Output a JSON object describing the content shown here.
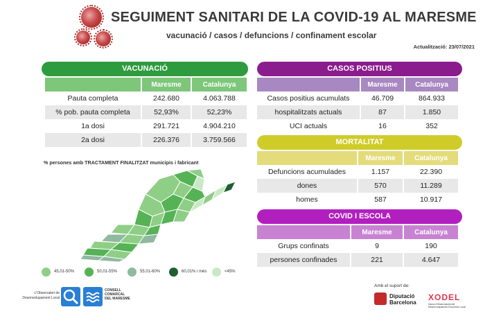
{
  "header": {
    "title": "SEGUIMENT SANITARI DE LA COVID-19 AL MARESME",
    "subtitle": "vacunació / casos / defuncions / confinament escolar",
    "updated": "Actualització: 23/07/2021"
  },
  "vaccination": {
    "title": "VACUNACIÓ",
    "col_region": "Maresme",
    "col_cat": "Catalunya",
    "rows": [
      {
        "label": "Pauta completa",
        "maresme": "242.680",
        "catalunya": "4.063.788"
      },
      {
        "label": "% pob. pauta completa",
        "maresme": "52,93%",
        "catalunya": "52,23%"
      },
      {
        "label": "1a dosi",
        "maresme": "291.721",
        "catalunya": "4.904.210"
      },
      {
        "label": "2a dosi",
        "maresme": "226.376",
        "catalunya": "3.759.566"
      }
    ]
  },
  "positive_cases": {
    "title": "CASOS POSITIUS",
    "col_region": "Maresme",
    "col_cat": "Catalunya",
    "rows": [
      {
        "label": "Casos positius acumulats",
        "maresme": "46.709",
        "catalunya": "864.933"
      },
      {
        "label": "hospitalitzats actuals",
        "maresme": "87",
        "catalunya": "1.850"
      },
      {
        "label": "UCI actuals",
        "maresme": "16",
        "catalunya": "352"
      }
    ]
  },
  "mortality": {
    "title": "MORTALITAT",
    "col_region": "Maresme",
    "col_cat": "Catalunya",
    "rows": [
      {
        "label": "Defuncions acumulades",
        "maresme": "1.157",
        "catalunya": "22.390"
      },
      {
        "label": "dones",
        "maresme": "570",
        "catalunya": "11.289"
      },
      {
        "label": "homes",
        "maresme": "587",
        "catalunya": "10.917"
      }
    ]
  },
  "school": {
    "title": "COVID I ESCOLA",
    "col_region": "Maresme",
    "col_cat": "Catalunya",
    "rows": [
      {
        "label": "Grups confinats",
        "maresme": "9",
        "catalunya": "190"
      },
      {
        "label": "persones confinades",
        "maresme": "221",
        "catalunya": "4.647"
      }
    ]
  },
  "map": {
    "caption": "% persones amb TRACTAMENT FINALITZAT municipis i  fabricant",
    "legend": [
      {
        "label": "45,01-50%",
        "color": "#8fce86"
      },
      {
        "label": "50,01-55%",
        "color": "#55b356"
      },
      {
        "label": "55,01-60%",
        "color": "#8fb9a0"
      },
      {
        "label": "60,01% i més",
        "color": "#1f5f32"
      },
      {
        "label": "<45%",
        "color": "#c8e9c4"
      }
    ]
  },
  "footer": {
    "observatori": "L'Observatori de Desenvolupament Local",
    "consell": "CONSELL COMARCAL DEL MARESME",
    "support": "Amb el suport de:",
    "diputacio": "Diputació Barcelona",
    "xodel": "XODEL",
    "xodel_sub": "Xarxa d'Observatoris del Desenvolupament Econòmic Local"
  }
}
